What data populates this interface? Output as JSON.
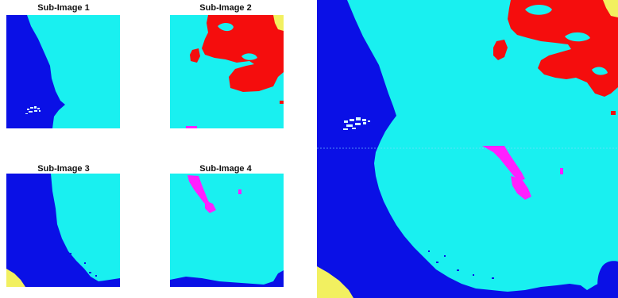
{
  "sub_images": [
    {
      "title": "Sub-Image 1"
    },
    {
      "title": "Sub-Image 2"
    },
    {
      "title": "Sub-Image 3"
    },
    {
      "title": "Sub-Image 4"
    }
  ],
  "colors": {
    "water": "#0a10e6",
    "land": "#19f0f0",
    "red_region": "#f50d0d",
    "magenta_region": "#ff20ff",
    "yellow_region": "#f2f060",
    "speckle": "#d8f8ff"
  }
}
